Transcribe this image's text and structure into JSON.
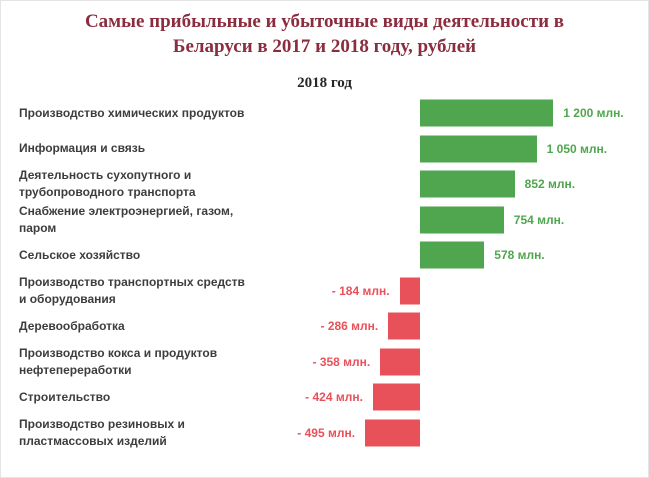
{
  "title": "Самые прибыльные и убыточные виды деятельности в\nБеларуси в 2017 и 2018 году, рублей",
  "subtitle": "2018 год",
  "colors": {
    "title": "#8b2d3e",
    "positive": "#4fa64f",
    "negative": "#e8515a",
    "label": "#3d3d3d",
    "background": "#ffffff"
  },
  "chart_data": {
    "type": "bar",
    "orientation": "horizontal",
    "title": "Самые прибыльные и убыточные виды деятельности в Беларуси в 2017 и 2018 году, рублей",
    "subtitle": "2018 год",
    "unit": "млн. рублей",
    "xlim": [
      -600,
      1300
    ],
    "legend": "none",
    "grid": false,
    "rows": [
      {
        "label": "Производство химических продуктов",
        "value": 1200,
        "value_label": "1 200 млн."
      },
      {
        "label": "Информация и связь",
        "value": 1050,
        "value_label": "1 050 млн."
      },
      {
        "label": "Деятельность сухопутного и\nтрубопроводного транспорта",
        "value": 852,
        "value_label": "852 млн."
      },
      {
        "label": "Снабжение электроэнергией, газом,\nпаром",
        "value": 754,
        "value_label": "754 млн."
      },
      {
        "label": "Сельское хозяйство",
        "value": 578,
        "value_label": "578 млн."
      },
      {
        "label": "Производство транспортных средств\nи оборудования",
        "value": -184,
        "value_label": "- 184 млн."
      },
      {
        "label": "Деревообработка",
        "value": -286,
        "value_label": "- 286 млн."
      },
      {
        "label": "Производство кокса и продуктов\nнефтепереработки",
        "value": -358,
        "value_label": "- 358 млн."
      },
      {
        "label": "Строительство",
        "value": -424,
        "value_label": "- 424 млн."
      },
      {
        "label": "Производство резиновых и\nпластмассовых изделий",
        "value": -495,
        "value_label": "- 495 млн."
      }
    ]
  }
}
